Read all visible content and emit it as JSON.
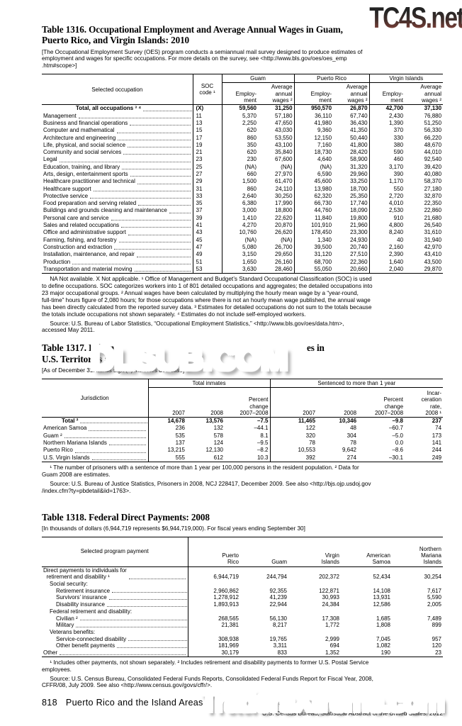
{
  "watermarks": {
    "top": "TC4S.net",
    "middle": "DLSUB.COM",
    "bottom": "TradersXtreme.com"
  },
  "t1316": {
    "title": "Table 1316. Occupational Employment and Average Annual Wages in Guam,\nPuerto Rico, and Virgin Islands: 2010",
    "note": "[The Occupational Employment Survey (OES) program conducts a semiannual mail survey designed to produce estimates of\nemployment and wages for specific occupations. For more details on the survey, see <http://www.bls.gov/oes/oes_emp\n.htm#scope>]",
    "header": {
      "occupation": "Selected occupation",
      "soc": "SOC\ncode ¹",
      "groups": [
        "Guam",
        "Puerto Rico",
        "Virgin Islands"
      ],
      "employment": "Employ-\nment",
      "wages": "Average\nannual\nwages ²"
    },
    "rows": [
      {
        "label": "Total, all occupations ³ ⁴",
        "soc": "(X)",
        "values": [
          "59,560",
          "31,250",
          "950,570",
          "26,870",
          "42,700",
          "37,130"
        ],
        "bold": true,
        "indent": 46
      },
      {
        "label": "Management",
        "soc": "11",
        "values": [
          "5,370",
          "57,180",
          "36,110",
          "67,740",
          "2,430",
          "76,880"
        ]
      },
      {
        "label": "Business and financial operations",
        "soc": "13",
        "values": [
          "2,250",
          "47,650",
          "41,980",
          "36,430",
          "1,390",
          "51,250"
        ]
      },
      {
        "label": "Computer and mathematical",
        "soc": "15",
        "values": [
          "620",
          "43,030",
          "9,360",
          "41,350",
          "370",
          "56,330"
        ]
      },
      {
        "label": "Architecture and engineering",
        "soc": "17",
        "values": [
          "860",
          "53,550",
          "12,150",
          "50,440",
          "330",
          "66,220"
        ]
      },
      {
        "label": "Life, physical, and social science",
        "soc": "19",
        "values": [
          "350",
          "43,100",
          "7,160",
          "41,800",
          "380",
          "48,670"
        ]
      },
      {
        "label": "Community and social services",
        "soc": "21",
        "values": [
          "620",
          "35,840",
          "18,730",
          "28,420",
          "590",
          "44,010"
        ]
      },
      {
        "label": "Legal",
        "soc": "23",
        "values": [
          "230",
          "67,600",
          "4,640",
          "58,900",
          "460",
          "92,540"
        ]
      },
      {
        "label": "Education, training, and library",
        "soc": "25",
        "values": [
          "(NA)",
          "(NA)",
          "(NA)",
          "31,320",
          "3,170",
          "39,420"
        ]
      },
      {
        "label": "Arts, design, entertainment sports",
        "soc": "27",
        "values": [
          "660",
          "27,970",
          "6,590",
          "29,960",
          "390",
          "40,080"
        ]
      },
      {
        "label": "Healthcare practitioner and technical",
        "soc": "29",
        "values": [
          "1,500",
          "61,470",
          "45,600",
          "33,250",
          "1,170",
          "58,370"
        ]
      },
      {
        "label": "Healthcare support",
        "soc": "31",
        "values": [
          "860",
          "24,110",
          "13,980",
          "18,700",
          "550",
          "27,180"
        ]
      },
      {
        "label": "Protective service",
        "soc": "33",
        "values": [
          "2,640",
          "30,250",
          "62,320",
          "25,350",
          "2,720",
          "32,870"
        ]
      },
      {
        "label": "Food preparation and serving related",
        "soc": "35",
        "values": [
          "6,380",
          "17,990",
          "66,730",
          "17,740",
          "4,010",
          "22,350"
        ]
      },
      {
        "label": "Buildings and grounds cleaning and maintenance",
        "soc": "37",
        "values": [
          "3,000",
          "18,800",
          "44,760",
          "18,090",
          "2,530",
          "22,860"
        ]
      },
      {
        "label": "Personal care and service",
        "soc": "39",
        "values": [
          "1,410",
          "22,620",
          "11,840",
          "19,800",
          "910",
          "21,680"
        ]
      },
      {
        "label": "Sales and related occupations",
        "soc": "41",
        "values": [
          "4,270",
          "20,870",
          "101,910",
          "21,960",
          "4,800",
          "26,540"
        ]
      },
      {
        "label": "Office and administrative support",
        "soc": "43",
        "values": [
          "10,760",
          "26,620",
          "178,450",
          "23,300",
          "8,240",
          "31,610"
        ]
      },
      {
        "label": "Farming, fishing, and forestry",
        "soc": "45",
        "values": [
          "(NA)",
          "(NA)",
          "1,340",
          "24,930",
          "40",
          "31,940"
        ]
      },
      {
        "label": "Construction and extraction",
        "soc": "47",
        "values": [
          "5,080",
          "26,700",
          "39,500",
          "20,740",
          "2,160",
          "42,970"
        ]
      },
      {
        "label": "Installation, maintenance, and repair",
        "soc": "49",
        "values": [
          "3,150",
          "29,650",
          "31,120",
          "27,510",
          "2,390",
          "43,410"
        ]
      },
      {
        "label": "Production",
        "soc": "51",
        "values": [
          "1,650",
          "26,160",
          "68,700",
          "22,360",
          "1,640",
          "43,500"
        ]
      },
      {
        "label": "Transportation and material moving",
        "soc": "53",
        "values": [
          "3,630",
          "28,460",
          "55,050",
          "20,660",
          "2,040",
          "29,870"
        ]
      }
    ],
    "footnote": "     NA Not available. X Not applicable. ¹ Office of Management and Budget’s Standard Occupational Classification (SOC) is used\nto define occupations. SOC categorizes workers into 1 of 801 detailed occupations and aggregates; the detailed occupations into\n23 major occupational groups. ² Annual wages have been calculated by multiplying the hourly mean wage by a “year-round,\nfull-time” hours figure of 2,080 hours; for those occupations where there is not an hourly mean wage published, the annual wage\nhas been directly calculated from the reported survey data. ³ Estimates for detailed occupations do not sum to the totals because\nthe totals include occupations not shown separately. ⁴ Estimates do not include self-employed workers.",
    "source": "     Source: U.S. Bureau of Labor Statistics, “Occupational Employment Statistics,” <http://www.bls.gov/oes/data.htm>,\naccessed May 2011."
  },
  "t1317": {
    "title_start": "Table 1317. Prison",
    "title_end": "es in",
    "title_line2": "U.S. Territories and",
    "note": "[As of December 31. Minus sign (–) indicates decrease]",
    "header": {
      "jurisdiction": "Jurisdiction",
      "group1": "Total inmates",
      "group2": "Sentenced to more than 1 year",
      "y2007": "2007",
      "y2008": "2008",
      "pct": "Percent\nchange\n2007–2008",
      "rate": "Incar-\nceration\nrate,\n2008 ¹"
    },
    "rows": [
      {
        "label": "Total ²",
        "values": [
          "14,678",
          "13,576",
          "–7.5",
          "11,465",
          "10,346",
          "–9.8",
          "237"
        ],
        "bold": true,
        "indent": 26
      },
      {
        "label": "American Samoa",
        "values": [
          "236",
          "132",
          "–44.1",
          "122",
          "48",
          "–60.7",
          "74"
        ]
      },
      {
        "label": "Guam ²",
        "values": [
          "535",
          "578",
          "8.1",
          "320",
          "304",
          "–5.0",
          "173"
        ]
      },
      {
        "label": "Northern Mariana Islands",
        "values": [
          "137",
          "124",
          "–9.5",
          "78",
          "78",
          "0.0",
          "141"
        ]
      },
      {
        "label": "Puerto Rico",
        "values": [
          "13,215",
          "12,130",
          "–8.2",
          "10,553",
          "9,642",
          "–8.6",
          "244"
        ]
      },
      {
        "label": "U.S. Virgin Islands",
        "values": [
          "555",
          "612",
          "10.3",
          "392",
          "274",
          "–30.1",
          "249"
        ]
      }
    ],
    "footnote": "     ¹ The number of prisoners with a sentence of more than 1 year per 100,000 persons in the resident population. ² Data for\nGuam 2008 are estimates.",
    "source": "     Source: U.S. Bureau of Justice Statistics, Prisoners in 2008, NCJ 228417, December 2009. See also <http://bjs.ojp.usdoj.gov\n/index.cfm?ty=pbdetail&iid=1763>."
  },
  "t1318": {
    "title": "Table 1318. Federal Direct Payments: 2008",
    "note": "[In thousands of dollars (6,944,719 represents $6,944,719,000). For fiscal years ending September 30]",
    "header": {
      "label": "Selected program payment",
      "cols": [
        "Puerto\nRico",
        "Guam",
        "Virgin\nIslands",
        "American\nSamoa",
        "Northern\nMariana\nIslands"
      ]
    },
    "rows": [
      {
        "label": "Direct payments to individuals for\n  retirement and disability ¹",
        "values": [
          "6,944,719",
          "244,794",
          "202,372",
          "52,434",
          "30,254"
        ],
        "indent": 0
      },
      {
        "label": "Social security:",
        "sub": true,
        "indent": 9
      },
      {
        "label": "Retirement insurance",
        "values": [
          "2,960,862",
          "92,355",
          "122,871",
          "14,108",
          "7,617"
        ],
        "indent": 18
      },
      {
        "label": "Survivors’ insurance",
        "values": [
          "1,278,912",
          "41,239",
          "30,993",
          "13,931",
          "5,590"
        ],
        "indent": 18
      },
      {
        "label": "Disability insurance",
        "values": [
          "1,893,913",
          "22,944",
          "24,384",
          "12,586",
          "2,005"
        ],
        "indent": 18
      },
      {
        "label": "Federal retirement and disability:",
        "sub": true,
        "indent": 9
      },
      {
        "label": "Civilian ²",
        "values": [
          "268,565",
          "56,130",
          "17,308",
          "1,685",
          "7,489"
        ],
        "indent": 18
      },
      {
        "label": "Military",
        "values": [
          "21,381",
          "8,217",
          "1,772",
          "1,808",
          "899"
        ],
        "indent": 18
      },
      {
        "label": "Veterans benefits:",
        "sub": true,
        "indent": 9
      },
      {
        "label": "Service-connected disability",
        "values": [
          "308,938",
          "19,765",
          "2,999",
          "7,045",
          "957"
        ],
        "indent": 18
      },
      {
        "label": "Other benefit payments",
        "values": [
          "181,969",
          "3,311",
          "694",
          "1,082",
          "120"
        ],
        "indent": 18
      },
      {
        "label": "Other",
        "values": [
          "30,179",
          "833",
          "1,352",
          "190",
          "23"
        ],
        "indent": 0
      }
    ],
    "footnote": "     ¹ Includes other payments, not shown separately. ² Includes retirement and disability payments to former U.S. Postal Service\nemployees.",
    "source": "     Source: U.S. Census Bureau, Consolidated Federal Funds Reports, Consolidated Federal Funds Report for Fiscal Year, 2008,\nCFFR/08, July 2009. See also <http://www.census.gov/govs/cffr/>."
  },
  "footer": {
    "page": "818",
    "section": "Puerto Rico and the Island Areas",
    "credit": "U.S. Census Bureau, Statistical Abstract of the United States: 2012"
  }
}
